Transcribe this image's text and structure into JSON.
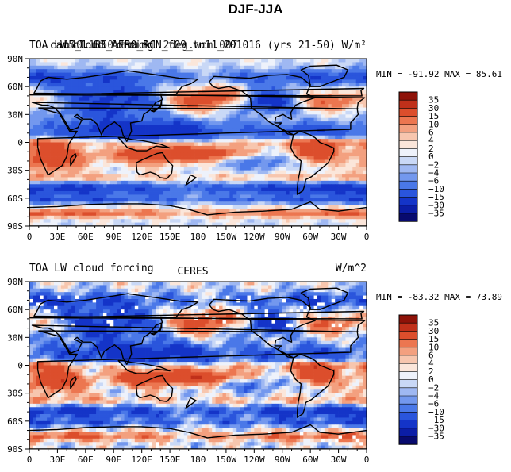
{
  "figure_title": "DJF-JJA",
  "colors": {
    "scale": [
      "#080a6e",
      "#0b1da6",
      "#1434c8",
      "#2a55dc",
      "#4a78e8",
      "#7398ee",
      "#9fb8f2",
      "#c9d8f6",
      "#eef2fb",
      "#fbe6da",
      "#f7c6ae",
      "#f3a07f",
      "#ec7650",
      "#dc4e2c",
      "#c0301a",
      "#8e1208"
    ],
    "land_outline": "#000000"
  },
  "chart_data": [
    {
      "type": "heatmap",
      "left_title": "TOA LW cloud forcing",
      "center_title": "b40.1850.track1.2deg.wcm.007",
      "right_title": "cam5_1.83_AERO_RCN_f09_tn11_201016 (yrs 21-50)  W/m²",
      "overlapping_title_note": "left and center titles overlap in the original",
      "stats": "MIN = -91.92 MAX =  85.61",
      "min": -91.92,
      "max": 85.61,
      "x_ticks": [
        "0",
        "30E",
        "60E",
        "90E",
        "120E",
        "150E",
        "180",
        "150W",
        "120W",
        "90W",
        "60W",
        "30W",
        "0"
      ],
      "y_ticks": [
        "90N",
        "60N",
        "30N",
        "0",
        "30S",
        "60S",
        "90S"
      ],
      "levels": [
        -35,
        -30,
        -15,
        -10,
        -6,
        -4,
        -2,
        0,
        2,
        4,
        6,
        10,
        15,
        30,
        35
      ],
      "colorbar_labels": [
        "35",
        "30",
        "15",
        "10",
        "6",
        "4",
        "2",
        "0",
        "−2",
        "−4",
        "−6",
        "−10",
        "−15",
        "−30",
        "−35"
      ]
    },
    {
      "type": "heatmap",
      "left_title": "TOA LW cloud forcing",
      "center_title": "CERES",
      "right_title": "W/m^2",
      "stats": "MIN = -83.32 MAX =  73.89",
      "min": -83.32,
      "max": 73.89,
      "x_ticks": [
        "0",
        "30E",
        "60E",
        "90E",
        "120E",
        "150E",
        "180",
        "150W",
        "120W",
        "90W",
        "60W",
        "30W",
        "0"
      ],
      "y_ticks": [
        "90N",
        "60N",
        "30N",
        "0",
        "30S",
        "60S",
        "90S"
      ],
      "levels": [
        -35,
        -30,
        -15,
        -10,
        -6,
        -4,
        -2,
        0,
        2,
        4,
        6,
        10,
        15,
        30,
        35
      ],
      "colorbar_labels": [
        "35",
        "30",
        "15",
        "10",
        "6",
        "4",
        "2",
        "0",
        "−2",
        "−4",
        "−6",
        "−10",
        "−15",
        "−30",
        "−35"
      ]
    }
  ]
}
